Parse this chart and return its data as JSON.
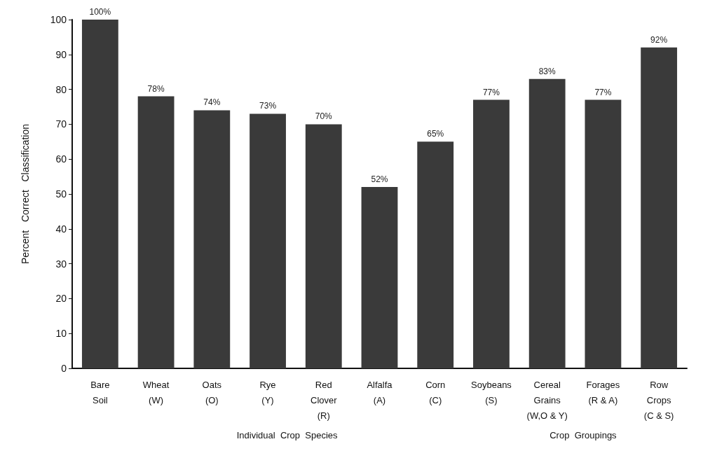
{
  "chart_data": {
    "type": "bar",
    "ylabel": "Percent   Correct   Classification",
    "categories": [
      "Bare\nSoil",
      "Wheat\n(W)",
      "Oats\n(O)",
      "Rye\n(Y)",
      "Red\nClover\n(R)",
      "Alfalfa\n(A)",
      "Corn\n(C)",
      "Soybeans\n(S)",
      "Cereal\nGrains\n(W,O & Y)",
      "Forages\n(R & A)",
      "Row\nCrops\n(C & S)"
    ],
    "values": [
      100,
      78,
      74,
      73,
      70,
      52,
      65,
      77,
      83,
      77,
      92
    ],
    "value_labels": [
      "100%",
      "78%",
      "74%",
      "73%",
      "70%",
      "52%",
      "65%",
      "77%",
      "83%",
      "77%",
      "92%"
    ],
    "color": "#3a3a3a",
    "ylim": [
      0,
      100
    ],
    "yticks": [
      0,
      10,
      20,
      30,
      40,
      50,
      60,
      70,
      80,
      90,
      100
    ],
    "grid": false,
    "annotations": [
      "Individual  Crop  Species",
      "Crop  Groupings"
    ]
  }
}
